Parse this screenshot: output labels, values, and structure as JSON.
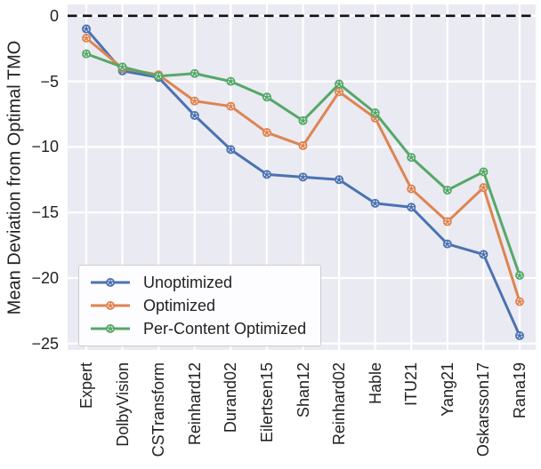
{
  "figure": {
    "colors": {
      "plot_background": "#EAEAF2",
      "grid": "#FFFFFF",
      "zero_line": "#111111",
      "text": "#222222",
      "legend_border": "#CCCCCC",
      "legend_background": "#FDFDFF"
    }
  },
  "chart_data": {
    "type": "line",
    "title": "",
    "xlabel": "",
    "ylabel": "Mean Deviation from Optimal TMO",
    "categories": [
      "Expert",
      "DolbyVision",
      "CSTransform",
      "Reinhard12",
      "Durand02",
      "Eilertsen15",
      "Shan12",
      "Reinhard02",
      "Hable",
      "ITU21",
      "Yang21",
      "Oskarsson17",
      "Rana19"
    ],
    "series": [
      {
        "name": "Unoptimized",
        "color": "#4C72B0",
        "values": [
          -1.0,
          -4.2,
          -4.7,
          -7.6,
          -10.2,
          -12.1,
          -12.3,
          -12.5,
          -14.3,
          -14.6,
          -17.4,
          -18.2,
          -24.4
        ]
      },
      {
        "name": "Optimized",
        "color": "#DD8452",
        "values": [
          -1.7,
          -4.0,
          -4.5,
          -6.5,
          -6.9,
          -8.9,
          -9.9,
          -5.8,
          -7.8,
          -13.2,
          -15.7,
          -13.1,
          -21.8
        ]
      },
      {
        "name": "Per-Content Optimized",
        "color": "#55A868",
        "values": [
          -2.9,
          -3.9,
          -4.6,
          -4.4,
          -5.0,
          -6.2,
          -8.0,
          -5.2,
          -7.4,
          -10.8,
          -13.3,
          -11.9,
          -19.8
        ]
      }
    ],
    "yticks": [
      0,
      -5,
      -10,
      -15,
      -20,
      -25
    ],
    "ylim": [
      -25.5,
      0.9
    ],
    "grid": true,
    "legend_position": "lower left",
    "zero_line": {
      "y": 0,
      "style": "dashed",
      "color": "#111111"
    }
  }
}
